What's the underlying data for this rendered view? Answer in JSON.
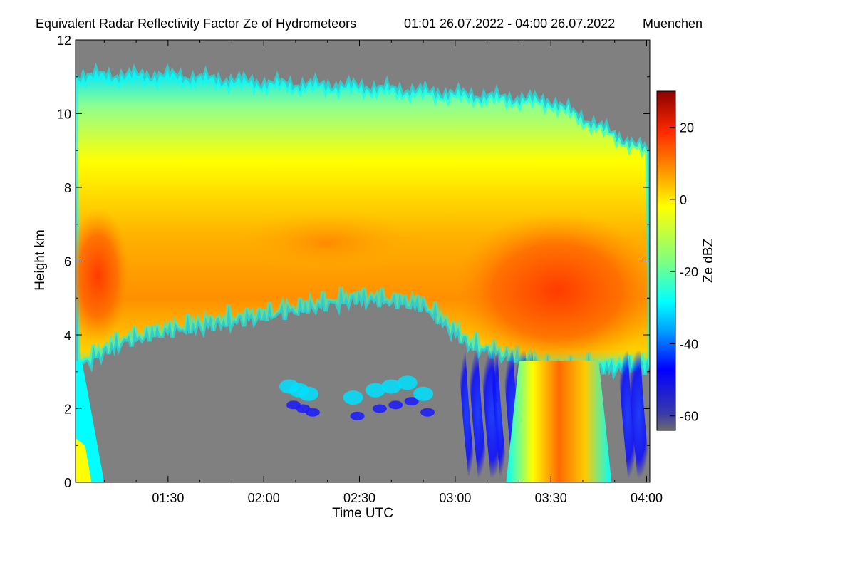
{
  "chart_data": {
    "type": "heatmap",
    "title": "Equivalent Radar Reflectivity Factor Ze of Hydrometeors",
    "time_range": "01:01 26.07.2022 - 04:00 26.07.2022",
    "location": "Muenchen",
    "xlabel": "Time UTC",
    "ylabel": "Height km",
    "x_ticks": [
      "01:30",
      "02:00",
      "02:30",
      "03:00",
      "03:30",
      "04:00"
    ],
    "x_tick_minutes": [
      90,
      120,
      150,
      180,
      210,
      240
    ],
    "xlim_minutes": [
      61,
      241
    ],
    "y_ticks": [
      0,
      2,
      4,
      6,
      8,
      10,
      12
    ],
    "ylim": [
      0,
      12
    ],
    "colorbar": {
      "label": "Ze dBZ",
      "ticks": [
        20,
        0,
        -20,
        -40,
        -60
      ],
      "range": [
        -64,
        30
      ],
      "colors": [
        "#6b6b6b",
        "#3a3aa8",
        "#0000ff",
        "#00b0ff",
        "#00ffff",
        "#7fff7f",
        "#ffff00",
        "#ff9900",
        "#ff3300",
        "#8b0000"
      ]
    },
    "background_color": "#808080",
    "features": {
      "cloud_top_km": [
        [
          61,
          11.0
        ],
        [
          90,
          11.0
        ],
        [
          120,
          10.8
        ],
        [
          150,
          10.7
        ],
        [
          180,
          10.5
        ],
        [
          210,
          10.3
        ],
        [
          241,
          8.9
        ]
      ],
      "cloud_base_km": [
        [
          61,
          3.6
        ],
        [
          75,
          4.3
        ],
        [
          90,
          4.6
        ],
        [
          120,
          5.0
        ],
        [
          150,
          5.5
        ],
        [
          170,
          5.3
        ],
        [
          185,
          4.2
        ],
        [
          210,
          3.6
        ],
        [
          241,
          3.6
        ]
      ],
      "core_dBZ_max": 20,
      "precip_shaft_minutes": [
        200,
        225
      ]
    }
  }
}
